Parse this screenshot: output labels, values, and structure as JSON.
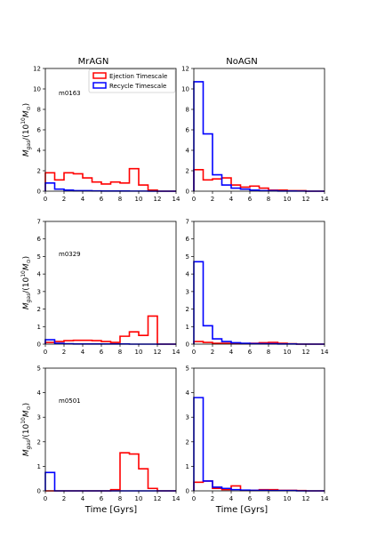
{
  "figure": {
    "columns": [
      "MrAGN",
      "NoAGN"
    ],
    "rows": [
      "m0163",
      "m0329",
      "m0501"
    ],
    "xlabel": "Time [Gyrs]",
    "ylabel_main": "M",
    "ylabel_sub": "gas",
    "ylabel_rest": "/(10",
    "ylabel_exp": "10",
    "ylabel_m": "M",
    "ylabel_sun": "⊙",
    "ylabel_close": ")",
    "legend": [
      {
        "name": "Ejection Timescale",
        "color": "#ff0000"
      },
      {
        "name": "Recycle Timescale",
        "color": "#0000ff"
      }
    ]
  },
  "chart_data": [
    {
      "type": "bar",
      "style": "step-histogram",
      "column": "MrAGN",
      "row": "m0163",
      "label": "m0163",
      "bin_edges": [
        0,
        1,
        2,
        3,
        4,
        5,
        6,
        7,
        8,
        9,
        10,
        11,
        12,
        13,
        14
      ],
      "xlim": [
        0,
        14
      ],
      "ylim": [
        0,
        12
      ],
      "xticks": [
        0,
        2,
        4,
        6,
        8,
        10,
        12,
        14
      ],
      "yticks": [
        0,
        2,
        4,
        6,
        8,
        10,
        12
      ],
      "legend_position": "top-right",
      "series": [
        {
          "name": "Ejection Timescale",
          "color": "#ff0000",
          "values": [
            1.8,
            1.1,
            1.8,
            1.7,
            1.3,
            0.9,
            0.7,
            0.9,
            0.8,
            2.2,
            0.6,
            0.1,
            0,
            0
          ]
        },
        {
          "name": "Recycle Timescale",
          "color": "#0000ff",
          "values": [
            0.8,
            0.2,
            0.1,
            0.05,
            0.05,
            0.03,
            0.02,
            0.02,
            0.02,
            0.01,
            0.01,
            0,
            0,
            0
          ]
        }
      ]
    },
    {
      "type": "bar",
      "style": "step-histogram",
      "column": "NoAGN",
      "row": "m0163",
      "label": "",
      "bin_edges": [
        0,
        1,
        2,
        3,
        4,
        5,
        6,
        7,
        8,
        9,
        10,
        11,
        12,
        13,
        14
      ],
      "xlim": [
        0,
        14
      ],
      "ylim": [
        0,
        12
      ],
      "xticks": [
        0,
        2,
        4,
        6,
        8,
        10,
        12,
        14
      ],
      "yticks": [
        0,
        2,
        4,
        6,
        8,
        10,
        12
      ],
      "series": [
        {
          "name": "Ejection Timescale",
          "color": "#ff0000",
          "values": [
            2.1,
            1.1,
            1.2,
            1.3,
            0.6,
            0.4,
            0.5,
            0.3,
            0.1,
            0.1,
            0.05,
            0.05,
            0,
            0
          ]
        },
        {
          "name": "Recycle Timescale",
          "color": "#0000ff",
          "values": [
            10.7,
            5.6,
            1.6,
            0.6,
            0.3,
            0.2,
            0.1,
            0.05,
            0.05,
            0.02,
            0.02,
            0.01,
            0,
            0
          ]
        }
      ]
    },
    {
      "type": "bar",
      "style": "step-histogram",
      "column": "MrAGN",
      "row": "m0329",
      "label": "m0329",
      "bin_edges": [
        0,
        1,
        2,
        3,
        4,
        5,
        6,
        7,
        8,
        9,
        10,
        11,
        12,
        13,
        14
      ],
      "xlim": [
        0,
        14
      ],
      "ylim": [
        0,
        7
      ],
      "xticks": [
        0,
        2,
        4,
        6,
        8,
        10,
        12,
        14
      ],
      "yticks": [
        0,
        1,
        2,
        3,
        4,
        5,
        6,
        7
      ],
      "series": [
        {
          "name": "Ejection Timescale",
          "color": "#ff0000",
          "values": [
            0.1,
            0.15,
            0.2,
            0.22,
            0.22,
            0.2,
            0.15,
            0.1,
            0.45,
            0.7,
            0.5,
            1.6,
            0,
            0
          ]
        },
        {
          "name": "Recycle Timescale",
          "color": "#0000ff",
          "values": [
            0.25,
            0.05,
            0.02,
            0.01,
            0.01,
            0.01,
            0.01,
            0.01,
            0.01,
            0,
            0,
            0,
            0,
            0
          ]
        }
      ]
    },
    {
      "type": "bar",
      "style": "step-histogram",
      "column": "NoAGN",
      "row": "m0329",
      "label": "",
      "bin_edges": [
        0,
        1,
        2,
        3,
        4,
        5,
        6,
        7,
        8,
        9,
        10,
        11,
        12,
        13,
        14
      ],
      "xlim": [
        0,
        14
      ],
      "ylim": [
        0,
        7
      ],
      "xticks": [
        0,
        2,
        4,
        6,
        8,
        10,
        12,
        14
      ],
      "yticks": [
        0,
        1,
        2,
        3,
        4,
        5,
        6,
        7
      ],
      "series": [
        {
          "name": "Ejection Timescale",
          "color": "#ff0000",
          "values": [
            0.15,
            0.1,
            0.05,
            0.05,
            0.03,
            0.03,
            0.05,
            0.08,
            0.1,
            0.05,
            0.02,
            0,
            0,
            0
          ]
        },
        {
          "name": "Recycle Timescale",
          "color": "#0000ff",
          "values": [
            4.7,
            1.05,
            0.3,
            0.15,
            0.08,
            0.05,
            0.03,
            0.02,
            0.02,
            0.01,
            0.01,
            0,
            0,
            0
          ]
        }
      ]
    },
    {
      "type": "bar",
      "style": "step-histogram",
      "column": "MrAGN",
      "row": "m0501",
      "label": "m0501",
      "bin_edges": [
        0,
        1,
        2,
        3,
        4,
        5,
        6,
        7,
        8,
        9,
        10,
        11,
        12,
        13,
        14
      ],
      "xlim": [
        0,
        14
      ],
      "ylim": [
        0,
        5
      ],
      "xticks": [
        0,
        2,
        4,
        6,
        8,
        10,
        12,
        14
      ],
      "yticks": [
        0,
        1,
        2,
        3,
        4,
        5
      ],
      "series": [
        {
          "name": "Ejection Timescale",
          "color": "#ff0000",
          "values": [
            0,
            0,
            0,
            0,
            0,
            0,
            0,
            0.05,
            1.55,
            1.5,
            0.9,
            0.1,
            0,
            0
          ]
        },
        {
          "name": "Recycle Timescale",
          "color": "#0000ff",
          "values": [
            0.75,
            0,
            0,
            0,
            0,
            0,
            0,
            0,
            0,
            0,
            0,
            0,
            0,
            0
          ]
        }
      ]
    },
    {
      "type": "bar",
      "style": "step-histogram",
      "column": "NoAGN",
      "row": "m0501",
      "label": "",
      "bin_edges": [
        0,
        1,
        2,
        3,
        4,
        5,
        6,
        7,
        8,
        9,
        10,
        11,
        12,
        13,
        14
      ],
      "xlim": [
        0,
        14
      ],
      "ylim": [
        0,
        5
      ],
      "xticks": [
        0,
        2,
        4,
        6,
        8,
        10,
        12,
        14
      ],
      "yticks": [
        0,
        1,
        2,
        3,
        4,
        5
      ],
      "series": [
        {
          "name": "Ejection Timescale",
          "color": "#ff0000",
          "values": [
            0.35,
            0.4,
            0.1,
            0.05,
            0.2,
            0.02,
            0.02,
            0.05,
            0.05,
            0.02,
            0.02,
            0.01,
            0,
            0
          ]
        },
        {
          "name": "Recycle Timescale",
          "color": "#0000ff",
          "values": [
            3.8,
            0.4,
            0.15,
            0.1,
            0.05,
            0.03,
            0.02,
            0.02,
            0.01,
            0.01,
            0.01,
            0,
            0,
            0
          ]
        }
      ]
    }
  ]
}
